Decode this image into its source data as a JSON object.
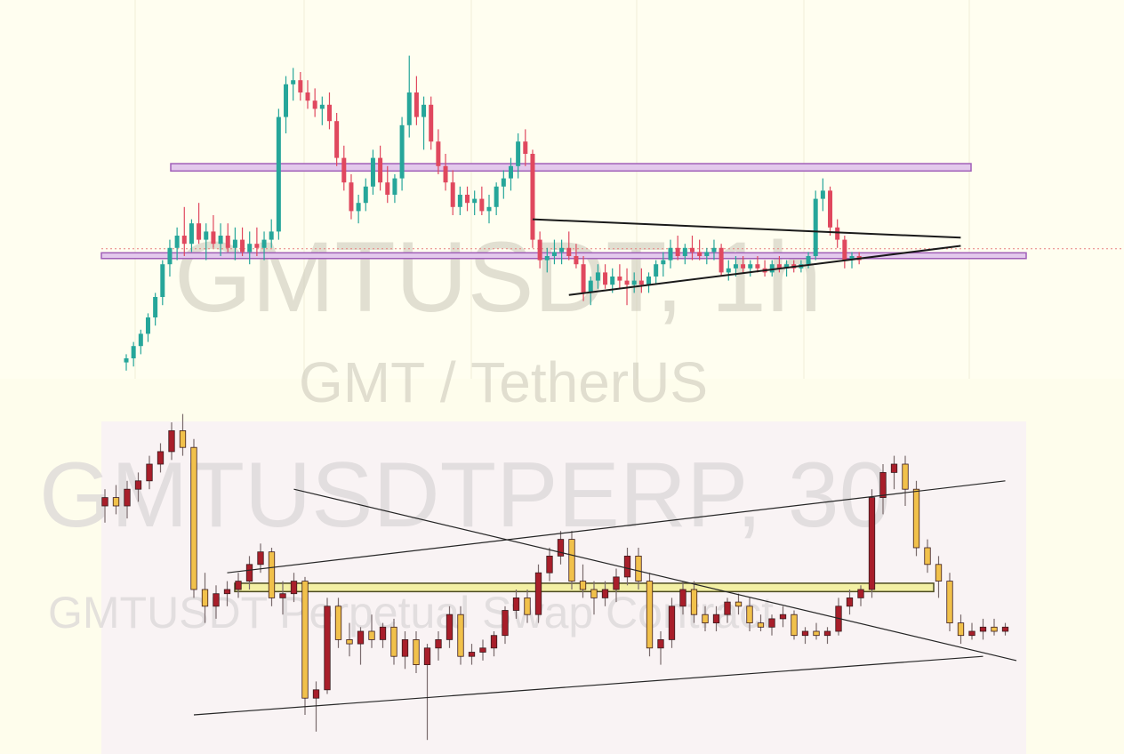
{
  "top_chart": {
    "watermark_symbol": "GMTUSDT, 1h",
    "watermark_description": "GMT / TetherUS",
    "colors": {
      "up": "#26a69a",
      "down": "#e0485e",
      "zone_fill": "#e3c9ec",
      "zone_stroke": "#a05fb8",
      "trendline": "#1a1a1a",
      "price_line": "#e88080",
      "grid": "#f1efd8"
    }
  },
  "bottom_chart": {
    "watermark_symbol": "GMTUSDTPERP, 30",
    "watermark_description": "GMTUSDT Perpetual Swap Contract",
    "colors": {
      "up": "#a81e2a",
      "down": "#f1c14b",
      "zone_fill": "#f3f0a4",
      "zone_stroke": "#4b4a20",
      "trendline": "#262626"
    }
  },
  "chart_data": [
    {
      "type": "candlestick",
      "symbol": "GMTUSDT",
      "timeframe": "1h",
      "candles": [
        {
          "o": 10,
          "h": 12,
          "l": 8,
          "c": 11
        },
        {
          "o": 11,
          "h": 15,
          "l": 9,
          "c": 14
        },
        {
          "o": 14,
          "h": 18,
          "l": 12,
          "c": 17
        },
        {
          "o": 17,
          "h": 22,
          "l": 15,
          "c": 21
        },
        {
          "o": 21,
          "h": 27,
          "l": 19,
          "c": 26
        },
        {
          "o": 26,
          "h": 35,
          "l": 24,
          "c": 34
        },
        {
          "o": 34,
          "h": 40,
          "l": 31,
          "c": 38
        },
        {
          "o": 38,
          "h": 43,
          "l": 35,
          "c": 41
        },
        {
          "o": 41,
          "h": 48,
          "l": 36,
          "c": 39
        },
        {
          "o": 39,
          "h": 45,
          "l": 37,
          "c": 44
        },
        {
          "o": 44,
          "h": 49,
          "l": 39,
          "c": 40
        },
        {
          "o": 40,
          "h": 44,
          "l": 35,
          "c": 42
        },
        {
          "o": 42,
          "h": 46,
          "l": 38,
          "c": 39
        },
        {
          "o": 39,
          "h": 44,
          "l": 36,
          "c": 41
        },
        {
          "o": 41,
          "h": 44,
          "l": 37,
          "c": 38
        },
        {
          "o": 38,
          "h": 43,
          "l": 35,
          "c": 40
        },
        {
          "o": 40,
          "h": 43,
          "l": 36,
          "c": 37
        },
        {
          "o": 37,
          "h": 42,
          "l": 34,
          "c": 39
        },
        {
          "o": 39,
          "h": 43,
          "l": 36,
          "c": 38
        },
        {
          "o": 38,
          "h": 42,
          "l": 35,
          "c": 40
        },
        {
          "o": 40,
          "h": 45,
          "l": 38,
          "c": 42
        },
        {
          "o": 42,
          "h": 72,
          "l": 40,
          "c": 70
        },
        {
          "o": 70,
          "h": 80,
          "l": 66,
          "c": 78
        },
        {
          "o": 78,
          "h": 82,
          "l": 74,
          "c": 79
        },
        {
          "o": 79,
          "h": 81,
          "l": 74,
          "c": 76
        },
        {
          "o": 76,
          "h": 79,
          "l": 72,
          "c": 74
        },
        {
          "o": 74,
          "h": 77,
          "l": 70,
          "c": 72
        },
        {
          "o": 72,
          "h": 75,
          "l": 68,
          "c": 73
        },
        {
          "o": 73,
          "h": 76,
          "l": 67,
          "c": 69
        },
        {
          "o": 69,
          "h": 71,
          "l": 58,
          "c": 60
        },
        {
          "o": 60,
          "h": 63,
          "l": 52,
          "c": 54
        },
        {
          "o": 54,
          "h": 56,
          "l": 45,
          "c": 47
        },
        {
          "o": 47,
          "h": 51,
          "l": 44,
          "c": 49
        },
        {
          "o": 49,
          "h": 55,
          "l": 47,
          "c": 53
        },
        {
          "o": 53,
          "h": 62,
          "l": 51,
          "c": 60
        },
        {
          "o": 60,
          "h": 63,
          "l": 52,
          "c": 54
        },
        {
          "o": 54,
          "h": 58,
          "l": 49,
          "c": 51
        },
        {
          "o": 51,
          "h": 56,
          "l": 49,
          "c": 55
        },
        {
          "o": 55,
          "h": 70,
          "l": 52,
          "c": 68
        },
        {
          "o": 68,
          "h": 85,
          "l": 65,
          "c": 76
        },
        {
          "o": 76,
          "h": 80,
          "l": 68,
          "c": 70
        },
        {
          "o": 70,
          "h": 75,
          "l": 62,
          "c": 73
        },
        {
          "o": 73,
          "h": 75,
          "l": 62,
          "c": 64
        },
        {
          "o": 64,
          "h": 67,
          "l": 56,
          "c": 58
        },
        {
          "o": 58,
          "h": 61,
          "l": 52,
          "c": 54
        },
        {
          "o": 54,
          "h": 57,
          "l": 46,
          "c": 48
        },
        {
          "o": 48,
          "h": 53,
          "l": 46,
          "c": 51
        },
        {
          "o": 51,
          "h": 53,
          "l": 47,
          "c": 49
        },
        {
          "o": 49,
          "h": 52,
          "l": 46,
          "c": 50
        },
        {
          "o": 50,
          "h": 53,
          "l": 46,
          "c": 47
        },
        {
          "o": 47,
          "h": 51,
          "l": 44,
          "c": 48
        },
        {
          "o": 48,
          "h": 54,
          "l": 46,
          "c": 53
        },
        {
          "o": 53,
          "h": 57,
          "l": 50,
          "c": 55
        },
        {
          "o": 55,
          "h": 60,
          "l": 52,
          "c": 58
        },
        {
          "o": 58,
          "h": 66,
          "l": 55,
          "c": 64
        },
        {
          "o": 64,
          "h": 67,
          "l": 58,
          "c": 61
        },
        {
          "o": 61,
          "h": 62,
          "l": 38,
          "c": 40
        },
        {
          "o": 40,
          "h": 42,
          "l": 33,
          "c": 35
        },
        {
          "o": 35,
          "h": 38,
          "l": 32,
          "c": 36
        },
        {
          "o": 36,
          "h": 40,
          "l": 34,
          "c": 37
        },
        {
          "o": 37,
          "h": 40,
          "l": 34,
          "c": 38
        },
        {
          "o": 38,
          "h": 42,
          "l": 35,
          "c": 36
        },
        {
          "o": 36,
          "h": 39,
          "l": 33,
          "c": 34
        },
        {
          "o": 34,
          "h": 36,
          "l": 25,
          "c": 27
        },
        {
          "o": 27,
          "h": 31,
          "l": 24,
          "c": 30
        },
        {
          "o": 30,
          "h": 34,
          "l": 28,
          "c": 32
        },
        {
          "o": 32,
          "h": 34,
          "l": 28,
          "c": 29
        },
        {
          "o": 29,
          "h": 33,
          "l": 27,
          "c": 31
        },
        {
          "o": 31,
          "h": 34,
          "l": 28,
          "c": 30
        },
        {
          "o": 30,
          "h": 33,
          "l": 24,
          "c": 29
        },
        {
          "o": 29,
          "h": 32,
          "l": 27,
          "c": 30
        },
        {
          "o": 30,
          "h": 33,
          "l": 27,
          "c": 29
        },
        {
          "o": 29,
          "h": 32,
          "l": 27,
          "c": 31
        },
        {
          "o": 31,
          "h": 35,
          "l": 29,
          "c": 34
        },
        {
          "o": 34,
          "h": 37,
          "l": 31,
          "c": 35
        },
        {
          "o": 35,
          "h": 40,
          "l": 33,
          "c": 38
        },
        {
          "o": 38,
          "h": 41,
          "l": 35,
          "c": 36
        },
        {
          "o": 36,
          "h": 39,
          "l": 34,
          "c": 38
        },
        {
          "o": 38,
          "h": 41,
          "l": 35,
          "c": 37
        },
        {
          "o": 37,
          "h": 40,
          "l": 35,
          "c": 36
        },
        {
          "o": 36,
          "h": 38,
          "l": 34,
          "c": 37
        },
        {
          "o": 37,
          "h": 40,
          "l": 35,
          "c": 38
        },
        {
          "o": 38,
          "h": 39,
          "l": 31,
          "c": 32
        },
        {
          "o": 32,
          "h": 35,
          "l": 30,
          "c": 33
        },
        {
          "o": 33,
          "h": 36,
          "l": 31,
          "c": 34
        },
        {
          "o": 34,
          "h": 36,
          "l": 32,
          "c": 33
        },
        {
          "o": 33,
          "h": 35,
          "l": 31,
          "c": 34
        },
        {
          "o": 34,
          "h": 36,
          "l": 32,
          "c": 33
        },
        {
          "o": 33,
          "h": 35,
          "l": 31,
          "c": 32
        },
        {
          "o": 32,
          "h": 35,
          "l": 31,
          "c": 34
        },
        {
          "o": 34,
          "h": 36,
          "l": 32,
          "c": 33
        },
        {
          "o": 33,
          "h": 35,
          "l": 31,
          "c": 34
        },
        {
          "o": 34,
          "h": 35,
          "l": 32,
          "c": 33
        },
        {
          "o": 33,
          "h": 35,
          "l": 32,
          "c": 34
        },
        {
          "o": 34,
          "h": 37,
          "l": 33,
          "c": 36
        },
        {
          "o": 36,
          "h": 52,
          "l": 35,
          "c": 50
        },
        {
          "o": 50,
          "h": 55,
          "l": 47,
          "c": 52
        },
        {
          "o": 52,
          "h": 53,
          "l": 41,
          "c": 43
        },
        {
          "o": 43,
          "h": 45,
          "l": 38,
          "c": 40
        },
        {
          "o": 40,
          "h": 41,
          "l": 33,
          "c": 35
        },
        {
          "o": 35,
          "h": 37,
          "l": 33,
          "c": 36
        },
        {
          "o": 36,
          "h": 37,
          "l": 34,
          "c": 35
        }
      ],
      "zones": [
        {
          "from": 56.8,
          "to": 58.6
        },
        {
          "from": 35.4,
          "to": 36.8
        }
      ],
      "reference_price_line": 37.8,
      "trendlines": [
        {
          "from": [
            56,
            45
          ],
          "to": [
            115,
            40.5
          ]
        },
        {
          "from": [
            61,
            26.5
          ],
          "to": [
            115,
            38.5
          ]
        }
      ]
    },
    {
      "type": "candlestick",
      "symbol": "GMTUSDTPERP",
      "timeframe": "30",
      "candles": [
        {
          "o": 42,
          "h": 46,
          "l": 38,
          "c": 44
        },
        {
          "o": 44,
          "h": 47,
          "l": 40,
          "c": 42
        },
        {
          "o": 42,
          "h": 48,
          "l": 39,
          "c": 46
        },
        {
          "o": 46,
          "h": 50,
          "l": 43,
          "c": 48
        },
        {
          "o": 48,
          "h": 54,
          "l": 46,
          "c": 52
        },
        {
          "o": 52,
          "h": 57,
          "l": 50,
          "c": 55
        },
        {
          "o": 55,
          "h": 62,
          "l": 53,
          "c": 60
        },
        {
          "o": 60,
          "h": 64,
          "l": 54,
          "c": 56
        },
        {
          "o": 56,
          "h": 58,
          "l": 20,
          "c": 22
        },
        {
          "o": 22,
          "h": 26,
          "l": 14,
          "c": 18
        },
        {
          "o": 18,
          "h": 23,
          "l": 15,
          "c": 21
        },
        {
          "o": 21,
          "h": 24,
          "l": 18,
          "c": 22
        },
        {
          "o": 22,
          "h": 26,
          "l": 20,
          "c": 24
        },
        {
          "o": 24,
          "h": 30,
          "l": 22,
          "c": 28
        },
        {
          "o": 28,
          "h": 33,
          "l": 26,
          "c": 31
        },
        {
          "o": 31,
          "h": 32,
          "l": 18,
          "c": 20
        },
        {
          "o": 20,
          "h": 24,
          "l": 16,
          "c": 21
        },
        {
          "o": 21,
          "h": 26,
          "l": 19,
          "c": 24
        },
        {
          "o": 24,
          "h": 25,
          "l": -8,
          "c": -4
        },
        {
          "o": -4,
          "h": 0,
          "l": -12,
          "c": -2
        },
        {
          "o": -2,
          "h": 20,
          "l": -3,
          "c": 18
        },
        {
          "o": 18,
          "h": 20,
          "l": 8,
          "c": 10
        },
        {
          "o": 10,
          "h": 14,
          "l": 6,
          "c": 9
        },
        {
          "o": 9,
          "h": 13,
          "l": 4,
          "c": 12
        },
        {
          "o": 12,
          "h": 16,
          "l": 8,
          "c": 10
        },
        {
          "o": 10,
          "h": 14,
          "l": 8,
          "c": 13
        },
        {
          "o": 13,
          "h": 15,
          "l": 4,
          "c": 6
        },
        {
          "o": 6,
          "h": 12,
          "l": 3,
          "c": 10
        },
        {
          "o": 10,
          "h": 12,
          "l": 2,
          "c": 4
        },
        {
          "o": 4,
          "h": 9,
          "l": -14,
          "c": 8
        },
        {
          "o": 8,
          "h": 12,
          "l": 5,
          "c": 10
        },
        {
          "o": 10,
          "h": 18,
          "l": 8,
          "c": 16
        },
        {
          "o": 16,
          "h": 18,
          "l": 4,
          "c": 6
        },
        {
          "o": 6,
          "h": 9,
          "l": 4,
          "c": 7
        },
        {
          "o": 7,
          "h": 10,
          "l": 5,
          "c": 8
        },
        {
          "o": 8,
          "h": 12,
          "l": 6,
          "c": 11
        },
        {
          "o": 11,
          "h": 18,
          "l": 9,
          "c": 17
        },
        {
          "o": 17,
          "h": 22,
          "l": 15,
          "c": 20
        },
        {
          "o": 20,
          "h": 22,
          "l": 14,
          "c": 16
        },
        {
          "o": 16,
          "h": 28,
          "l": 14,
          "c": 26
        },
        {
          "o": 26,
          "h": 32,
          "l": 24,
          "c": 30
        },
        {
          "o": 30,
          "h": 36,
          "l": 28,
          "c": 34
        },
        {
          "o": 34,
          "h": 36,
          "l": 22,
          "c": 24
        },
        {
          "o": 24,
          "h": 28,
          "l": 20,
          "c": 22
        },
        {
          "o": 22,
          "h": 24,
          "l": 16,
          "c": 20
        },
        {
          "o": 20,
          "h": 24,
          "l": 18,
          "c": 22
        },
        {
          "o": 22,
          "h": 27,
          "l": 19,
          "c": 25
        },
        {
          "o": 25,
          "h": 32,
          "l": 23,
          "c": 30
        },
        {
          "o": 30,
          "h": 32,
          "l": 22,
          "c": 24
        },
        {
          "o": 24,
          "h": 26,
          "l": 6,
          "c": 8
        },
        {
          "o": 8,
          "h": 12,
          "l": 4,
          "c": 10
        },
        {
          "o": 10,
          "h": 20,
          "l": 8,
          "c": 18
        },
        {
          "o": 18,
          "h": 24,
          "l": 16,
          "c": 22
        },
        {
          "o": 22,
          "h": 24,
          "l": 14,
          "c": 16
        },
        {
          "o": 16,
          "h": 18,
          "l": 12,
          "c": 14
        },
        {
          "o": 14,
          "h": 18,
          "l": 12,
          "c": 16
        },
        {
          "o": 16,
          "h": 20,
          "l": 14,
          "c": 19
        },
        {
          "o": 19,
          "h": 21,
          "l": 16,
          "c": 18
        },
        {
          "o": 18,
          "h": 20,
          "l": 12,
          "c": 14
        },
        {
          "o": 14,
          "h": 16,
          "l": 12,
          "c": 13
        },
        {
          "o": 13,
          "h": 16,
          "l": 11,
          "c": 15
        },
        {
          "o": 15,
          "h": 18,
          "l": 13,
          "c": 16
        },
        {
          "o": 16,
          "h": 17,
          "l": 10,
          "c": 11
        },
        {
          "o": 11,
          "h": 13,
          "l": 9,
          "c": 12
        },
        {
          "o": 12,
          "h": 14,
          "l": 10,
          "c": 11
        },
        {
          "o": 11,
          "h": 13,
          "l": 9,
          "c": 12
        },
        {
          "o": 12,
          "h": 20,
          "l": 11,
          "c": 18
        },
        {
          "o": 18,
          "h": 22,
          "l": 16,
          "c": 20
        },
        {
          "o": 20,
          "h": 23,
          "l": 18,
          "c": 22
        },
        {
          "o": 22,
          "h": 46,
          "l": 20,
          "c": 44
        },
        {
          "o": 44,
          "h": 52,
          "l": 40,
          "c": 50
        },
        {
          "o": 50,
          "h": 54,
          "l": 46,
          "c": 52
        },
        {
          "o": 52,
          "h": 54,
          "l": 42,
          "c": 46
        },
        {
          "o": 46,
          "h": 48,
          "l": 30,
          "c": 32
        },
        {
          "o": 32,
          "h": 34,
          "l": 26,
          "c": 28
        },
        {
          "o": 28,
          "h": 30,
          "l": 20,
          "c": 24
        },
        {
          "o": 24,
          "h": 26,
          "l": 12,
          "c": 14
        },
        {
          "o": 14,
          "h": 16,
          "l": 9,
          "c": 11
        },
        {
          "o": 11,
          "h": 14,
          "l": 10,
          "c": 12
        },
        {
          "o": 12,
          "h": 15,
          "l": 10,
          "c": 13
        },
        {
          "o": 13,
          "h": 15,
          "l": 11,
          "c": 12
        },
        {
          "o": 12,
          "h": 14,
          "l": 11,
          "c": 13
        }
      ],
      "zones": [
        {
          "from": 21.5,
          "to": 23.5
        }
      ],
      "trendlines": [
        {
          "from": [
            11,
            26
          ],
          "to": [
            81,
            48
          ]
        },
        {
          "from": [
            17,
            46
          ],
          "to": [
            82,
            5
          ]
        },
        {
          "from": [
            8,
            -8
          ],
          "to": [
            79,
            6
          ]
        }
      ]
    }
  ]
}
